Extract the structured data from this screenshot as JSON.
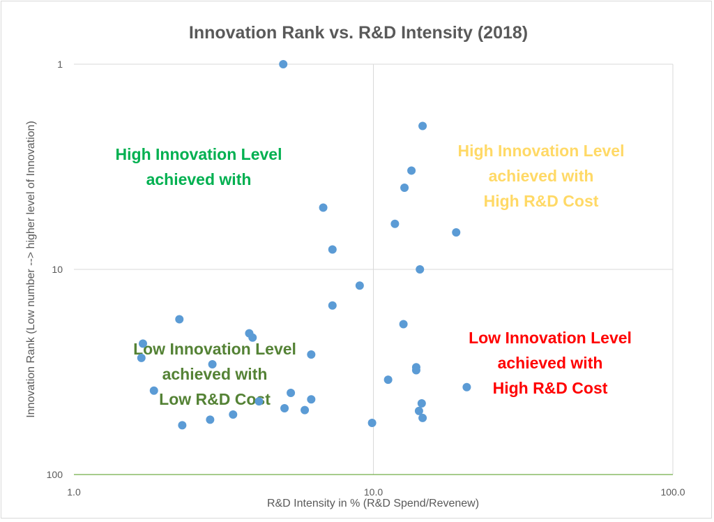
{
  "chart_data": {
    "type": "scatter",
    "title": "Innovation Rank vs. R&D Intensity (2018)",
    "xlabel": "R&D Intensity in % (R&D Spend/Revenew)",
    "ylabel": "Innovation Rank (Low number --> higher level of Innovation)",
    "x_scale": "log",
    "y_scale": "log",
    "y_reversed": true,
    "xlim": [
      1,
      100
    ],
    "ylim": [
      1,
      100
    ],
    "x_ticks": [
      1,
      10,
      100
    ],
    "x_tick_labels": [
      "1.0",
      "10.0",
      "100.0"
    ],
    "y_ticks": [
      1,
      10,
      100
    ],
    "y_tick_labels": [
      "1",
      "10",
      "100"
    ],
    "grid": true,
    "legend": "none",
    "marker_color": "#5b9bd5",
    "points": [
      {
        "x": 5.0,
        "y": 1.0
      },
      {
        "x": 14.6,
        "y": 2.0
      },
      {
        "x": 13.4,
        "y": 3.3
      },
      {
        "x": 12.7,
        "y": 4.0
      },
      {
        "x": 6.8,
        "y": 5.0
      },
      {
        "x": 11.8,
        "y": 6.0
      },
      {
        "x": 18.9,
        "y": 6.6
      },
      {
        "x": 7.3,
        "y": 8.0
      },
      {
        "x": 14.3,
        "y": 10.0
      },
      {
        "x": 9.0,
        "y": 12.0
      },
      {
        "x": 7.3,
        "y": 15.0
      },
      {
        "x": 2.25,
        "y": 17.5
      },
      {
        "x": 12.6,
        "y": 18.5
      },
      {
        "x": 3.85,
        "y": 20.5
      },
      {
        "x": 3.95,
        "y": 21.5
      },
      {
        "x": 1.7,
        "y": 23.0
      },
      {
        "x": 6.2,
        "y": 26.0
      },
      {
        "x": 1.68,
        "y": 27.0
      },
      {
        "x": 2.9,
        "y": 29.0
      },
      {
        "x": 13.9,
        "y": 30.0
      },
      {
        "x": 13.9,
        "y": 31.0
      },
      {
        "x": 11.2,
        "y": 34.5
      },
      {
        "x": 20.5,
        "y": 37.5
      },
      {
        "x": 1.85,
        "y": 39.0
      },
      {
        "x": 5.3,
        "y": 40.0
      },
      {
        "x": 6.2,
        "y": 43.0
      },
      {
        "x": 4.15,
        "y": 44.0
      },
      {
        "x": 14.5,
        "y": 45.0
      },
      {
        "x": 5.05,
        "y": 47.5
      },
      {
        "x": 5.9,
        "y": 48.5
      },
      {
        "x": 14.2,
        "y": 49.0
      },
      {
        "x": 3.4,
        "y": 51.0
      },
      {
        "x": 14.6,
        "y": 53.0
      },
      {
        "x": 2.85,
        "y": 54.0
      },
      {
        "x": 9.9,
        "y": 56.0
      },
      {
        "x": 2.3,
        "y": 57.5
      }
    ],
    "annotations": [
      {
        "lines": [
          "High Innovation Level",
          "achieved with"
        ],
        "color": "#00b050"
      },
      {
        "lines": [
          "High Innovation Level",
          "achieved with",
          "High R&D Cost"
        ],
        "color": "#ffd966"
      },
      {
        "lines": [
          "Low Innovation Level",
          "achieved with",
          "Low R&D Cost"
        ],
        "color": "#548235"
      },
      {
        "lines": [
          "Low Innovation Level",
          "achieved with",
          "High R&D Cost"
        ],
        "color": "#ff0000"
      }
    ]
  }
}
